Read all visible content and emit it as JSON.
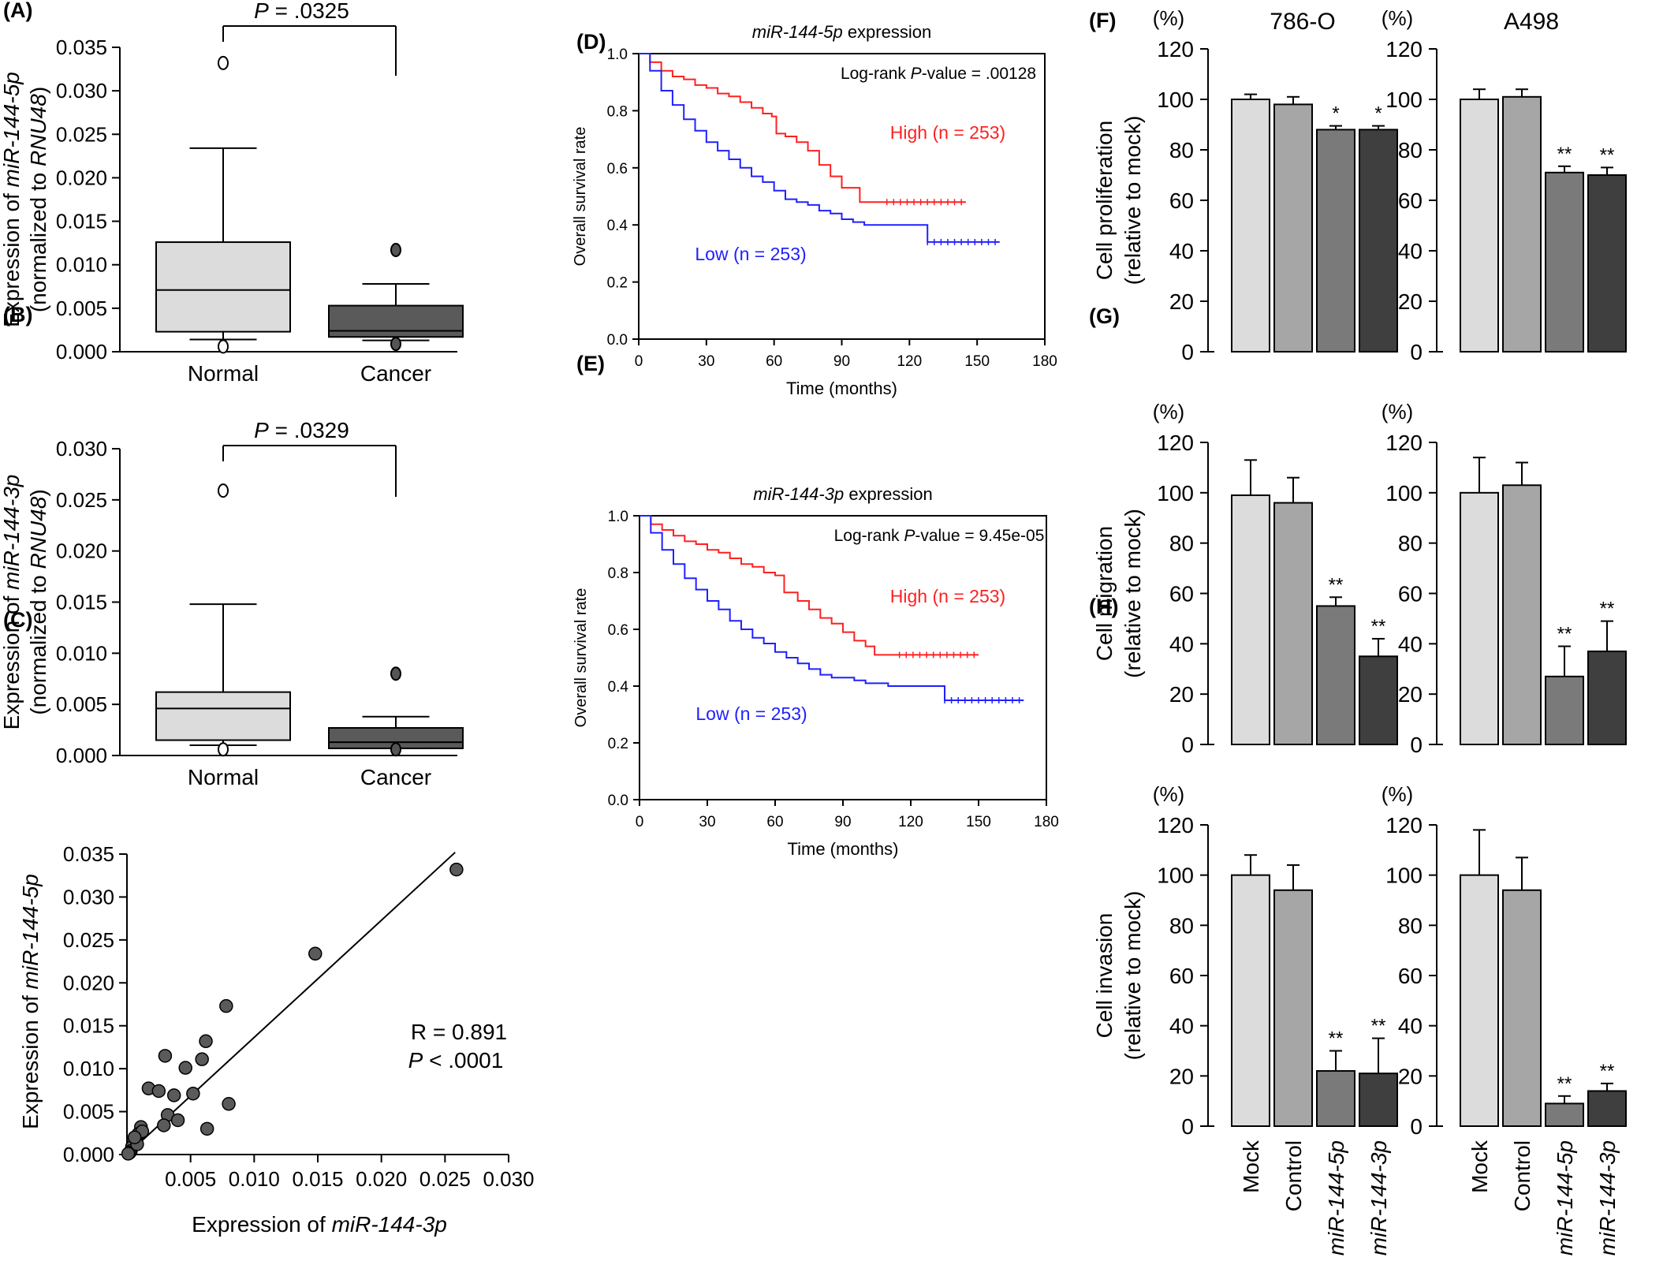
{
  "figure": {
    "panel_letters": [
      "(A)",
      "(B)",
      "(C)",
      "(D)",
      "(E)",
      "(F)",
      "(G)",
      "(H)"
    ],
    "colors": {
      "mock": "#dcdcdc",
      "control": "#a6a6a6",
      "mir5p": "#7a7a7a",
      "mir3p": "#3f3f3f",
      "box_normal": "#dcdcdc",
      "box_cancer": "#5a5a5a",
      "km_high": "#ff2020",
      "km_low": "#2020ff"
    }
  },
  "chart_data": [
    {
      "panel": "(A)",
      "type": "box",
      "ylabel_line1_prefix": "Expression of ",
      "ylabel_line1_italic": "miR-144-5p",
      "ylabel_line2_prefix": "(normalized to ",
      "ylabel_line2_italic": "RNU48",
      "ylabel_line2_suffix": ")",
      "categories": [
        "Normal",
        "Cancer"
      ],
      "yticks": [
        "0.000",
        "0.005",
        "0.010",
        "0.015",
        "0.020",
        "0.025",
        "0.030",
        "0.035"
      ],
      "ylim": [
        0,
        0.035
      ],
      "boxes": [
        {
          "name": "Normal",
          "q1": 0.0023,
          "median": 0.0071,
          "q3": 0.0126,
          "whisker_low": 0.0014,
          "whisker_high": 0.0234,
          "outliers": [
            0.0332,
            0.0006
          ]
        },
        {
          "name": "Cancer",
          "q1": 0.0017,
          "median": 0.0024,
          "q3": 0.0053,
          "whisker_low": 0.0013,
          "whisker_high": 0.0078,
          "outliers": [
            0.0117,
            0.0009
          ]
        }
      ],
      "p_italic": "P",
      "p_text": " = .0325"
    },
    {
      "panel": "(B)",
      "type": "box",
      "ylabel_line1_prefix": "Expression of ",
      "ylabel_line1_italic": "miR-144-3p",
      "ylabel_line2_prefix": "(normalized to ",
      "ylabel_line2_italic": "RNU48",
      "ylabel_line2_suffix": ")",
      "categories": [
        "Normal",
        "Cancer"
      ],
      "yticks": [
        "0.000",
        "0.005",
        "0.010",
        "0.015",
        "0.020",
        "0.025",
        "0.030"
      ],
      "ylim": [
        0,
        0.03
      ],
      "boxes": [
        {
          "name": "Normal",
          "q1": 0.0015,
          "median": 0.0046,
          "q3": 0.0062,
          "whisker_low": 0.001,
          "whisker_high": 0.0148,
          "outliers": [
            0.0259,
            0.0006
          ]
        },
        {
          "name": "Cancer",
          "q1": 0.0007,
          "median": 0.0013,
          "q3": 0.0027,
          "whisker_low": 0.0007,
          "whisker_high": 0.0038,
          "outliers": [
            0.008,
            0.0006
          ]
        }
      ],
      "p_italic": "P",
      "p_text": " = .0329"
    },
    {
      "panel": "(C)",
      "type": "scatter",
      "xlabel_prefix": "Expression of ",
      "xlabel_italic": "miR-144-3p",
      "ylabel_prefix": "Expression of ",
      "ylabel_italic": "miR-144-5p",
      "xticks": [
        "0.005",
        "0.010",
        "0.015",
        "0.020",
        "0.025",
        "0.030"
      ],
      "xtick_values": [
        0.005,
        0.01,
        0.015,
        0.02,
        0.025,
        0.03
      ],
      "yticks": [
        "0.000",
        "0.005",
        "0.010",
        "0.015",
        "0.020",
        "0.025",
        "0.030",
        "0.035"
      ],
      "xlim": [
        0,
        0.03
      ],
      "ylim": [
        0,
        0.035
      ],
      "points": [
        [
          0.0259,
          0.0332
        ],
        [
          0.0148,
          0.0234
        ],
        [
          0.0078,
          0.0173
        ],
        [
          0.0062,
          0.0132
        ],
        [
          0.003,
          0.0115
        ],
        [
          0.0059,
          0.0111
        ],
        [
          0.0046,
          0.0101
        ],
        [
          0.0017,
          0.0077
        ],
        [
          0.0025,
          0.0074
        ],
        [
          0.0037,
          0.0069
        ],
        [
          0.0052,
          0.0071
        ],
        [
          0.008,
          0.0059
        ],
        [
          0.0032,
          0.0046
        ],
        [
          0.004,
          0.004
        ],
        [
          0.0029,
          0.0034
        ],
        [
          0.0063,
          0.003
        ],
        [
          0.0011,
          0.0032
        ],
        [
          0.0009,
          0.0024
        ],
        [
          0.0012,
          0.0027
        ],
        [
          0.0005,
          0.0016
        ],
        [
          0.0004,
          0.0009
        ],
        [
          0.0003,
          0.0004
        ],
        [
          0.0002,
          0.0002
        ],
        [
          0.0008,
          0.0012
        ],
        [
          0.0006,
          0.002
        ],
        [
          0.0001,
          0.0001
        ]
      ],
      "fit_line": [
        [
          0.0,
          0.0
        ],
        [
          0.0258,
          0.0352
        ]
      ],
      "r_text": "R = 0.891",
      "p_italic": "P",
      "p_text": " < .0001"
    },
    {
      "panel": "(D)",
      "type": "line",
      "title_italic": "miR-144-5p",
      "title_suffix": " expression",
      "xlabel": "Time (months)",
      "ylabel": "Overall survival rate",
      "xticks": [
        "0",
        "30",
        "60",
        "90",
        "120",
        "150",
        "180"
      ],
      "yticks": [
        "0.0",
        "0.2",
        "0.4",
        "0.6",
        "0.8",
        "1.0"
      ],
      "xlim": [
        0,
        180
      ],
      "ylim": [
        0,
        1.0
      ],
      "logrank_prefix": "Log-rank ",
      "logrank_italic": "P",
      "logrank_suffix": "-value = .00128",
      "series": [
        {
          "name": "High (n = 253)",
          "points": [
            [
              0,
              1.0
            ],
            [
              5,
              0.97
            ],
            [
              10,
              0.94
            ],
            [
              15,
              0.92
            ],
            [
              20,
              0.91
            ],
            [
              25,
              0.89
            ],
            [
              30,
              0.88
            ],
            [
              35,
              0.86
            ],
            [
              40,
              0.85
            ],
            [
              45,
              0.83
            ],
            [
              50,
              0.81
            ],
            [
              55,
              0.79
            ],
            [
              59,
              0.78
            ],
            [
              61,
              0.72
            ],
            [
              65,
              0.71
            ],
            [
              70,
              0.69
            ],
            [
              75,
              0.66
            ],
            [
              80,
              0.61
            ],
            [
              85,
              0.57
            ],
            [
              90,
              0.53
            ],
            [
              95,
              0.53
            ],
            [
              98,
              0.48
            ],
            [
              110,
              0.48
            ],
            [
              125,
              0.48
            ],
            [
              145,
              0.48
            ]
          ]
        },
        {
          "name": "Low (n = 253)",
          "points": [
            [
              0,
              1.0
            ],
            [
              5,
              0.94
            ],
            [
              10,
              0.87
            ],
            [
              15,
              0.82
            ],
            [
              20,
              0.77
            ],
            [
              25,
              0.73
            ],
            [
              30,
              0.69
            ],
            [
              35,
              0.66
            ],
            [
              40,
              0.63
            ],
            [
              45,
              0.6
            ],
            [
              50,
              0.57
            ],
            [
              55,
              0.55
            ],
            [
              60,
              0.52
            ],
            [
              65,
              0.49
            ],
            [
              70,
              0.48
            ],
            [
              75,
              0.47
            ],
            [
              80,
              0.45
            ],
            [
              85,
              0.44
            ],
            [
              90,
              0.42
            ],
            [
              95,
              0.41
            ],
            [
              100,
              0.4
            ],
            [
              110,
              0.4
            ],
            [
              125,
              0.4
            ],
            [
              128,
              0.34
            ],
            [
              140,
              0.34
            ],
            [
              160,
              0.34
            ]
          ]
        }
      ]
    },
    {
      "panel": "(E)",
      "type": "line",
      "title_italic": "miR-144-3p",
      "title_suffix": " expression",
      "xlabel": "Time (months)",
      "ylabel": "Overall survival rate",
      "xticks": [
        "0",
        "30",
        "60",
        "90",
        "120",
        "150",
        "180"
      ],
      "yticks": [
        "0.0",
        "0.2",
        "0.4",
        "0.6",
        "0.8",
        "1.0"
      ],
      "xlim": [
        0,
        180
      ],
      "ylim": [
        0,
        1.0
      ],
      "logrank_prefix": "Log-rank ",
      "logrank_italic": "P",
      "logrank_suffix": "-value = 9.45e-05",
      "series": [
        {
          "name": "High (n = 253)",
          "points": [
            [
              0,
              1.0
            ],
            [
              5,
              0.97
            ],
            [
              10,
              0.95
            ],
            [
              15,
              0.93
            ],
            [
              20,
              0.91
            ],
            [
              25,
              0.9
            ],
            [
              30,
              0.88
            ],
            [
              35,
              0.87
            ],
            [
              40,
              0.85
            ],
            [
              45,
              0.83
            ],
            [
              50,
              0.82
            ],
            [
              55,
              0.8
            ],
            [
              60,
              0.79
            ],
            [
              64,
              0.73
            ],
            [
              70,
              0.7
            ],
            [
              75,
              0.67
            ],
            [
              80,
              0.64
            ],
            [
              85,
              0.62
            ],
            [
              90,
              0.59
            ],
            [
              95,
              0.56
            ],
            [
              100,
              0.54
            ],
            [
              104,
              0.51
            ],
            [
              115,
              0.51
            ],
            [
              130,
              0.51
            ],
            [
              150,
              0.51
            ]
          ]
        },
        {
          "name": "Low (n = 253)",
          "points": [
            [
              0,
              1.0
            ],
            [
              5,
              0.94
            ],
            [
              10,
              0.88
            ],
            [
              15,
              0.83
            ],
            [
              20,
              0.78
            ],
            [
              25,
              0.74
            ],
            [
              30,
              0.7
            ],
            [
              35,
              0.67
            ],
            [
              40,
              0.63
            ],
            [
              45,
              0.6
            ],
            [
              50,
              0.57
            ],
            [
              55,
              0.55
            ],
            [
              60,
              0.52
            ],
            [
              65,
              0.5
            ],
            [
              70,
              0.48
            ],
            [
              75,
              0.46
            ],
            [
              80,
              0.44
            ],
            [
              85,
              0.43
            ],
            [
              90,
              0.43
            ],
            [
              95,
              0.42
            ],
            [
              100,
              0.41
            ],
            [
              110,
              0.4
            ],
            [
              120,
              0.4
            ],
            [
              135,
              0.35
            ],
            [
              150,
              0.35
            ],
            [
              170,
              0.35
            ]
          ]
        }
      ]
    },
    {
      "panel": "(F)",
      "type": "bar",
      "ylabel_line1": "Cell proliferation",
      "ylabel_line2": "(relative to mock)",
      "unit": "(%)",
      "yticks": [
        "0",
        "20",
        "40",
        "60",
        "80",
        "100",
        "120"
      ],
      "ylim": [
        0,
        120
      ],
      "categories": [
        "Mock",
        "Control",
        "miR-144-5p",
        "miR-144-3p"
      ],
      "panels": [
        {
          "title": "786-O",
          "values": [
            100,
            98,
            88,
            88
          ],
          "errors": [
            2,
            3,
            1.5,
            1.5
          ],
          "stars": [
            "",
            "",
            "*",
            "*"
          ]
        },
        {
          "title": "A498",
          "values": [
            100,
            101,
            71,
            70
          ],
          "errors": [
            4,
            3,
            2.5,
            3
          ],
          "stars": [
            "",
            "",
            "**",
            "**"
          ]
        }
      ]
    },
    {
      "panel": "(G)",
      "type": "bar",
      "ylabel_line1": "Cell migration",
      "ylabel_line2": "(relative to mock)",
      "unit": "(%)",
      "yticks": [
        "0",
        "20",
        "40",
        "60",
        "80",
        "100",
        "120"
      ],
      "ylim": [
        0,
        120
      ],
      "categories": [
        "Mock",
        "Control",
        "miR-144-5p",
        "miR-144-3p"
      ],
      "panels": [
        {
          "title": "",
          "values": [
            99,
            96,
            55,
            35
          ],
          "errors": [
            14,
            10,
            3.5,
            7
          ],
          "stars": [
            "",
            "",
            "**",
            "**"
          ]
        },
        {
          "title": "",
          "values": [
            100,
            103,
            27,
            37
          ],
          "errors": [
            14,
            9,
            12,
            12
          ],
          "stars": [
            "",
            "",
            "**",
            "**"
          ]
        }
      ]
    },
    {
      "panel": "(H)",
      "type": "bar",
      "ylabel_line1": "Cell invasion",
      "ylabel_line2": "(relative to mock)",
      "unit": "(%)",
      "yticks": [
        "0",
        "20",
        "40",
        "60",
        "80",
        "100",
        "120"
      ],
      "ylim": [
        0,
        120
      ],
      "categories": [
        "Mock",
        "Control",
        "miR-144-5p",
        "miR-144-3p"
      ],
      "category_italic": [
        false,
        false,
        true,
        true
      ],
      "panels": [
        {
          "title": "",
          "values": [
            100,
            94,
            22,
            21
          ],
          "errors": [
            8,
            10,
            8,
            14
          ],
          "stars": [
            "",
            "",
            "**",
            "**"
          ]
        },
        {
          "title": "",
          "values": [
            100,
            94,
            9,
            14
          ],
          "errors": [
            18,
            13,
            3,
            3
          ],
          "stars": [
            "",
            "",
            "**",
            "**"
          ]
        }
      ]
    }
  ]
}
